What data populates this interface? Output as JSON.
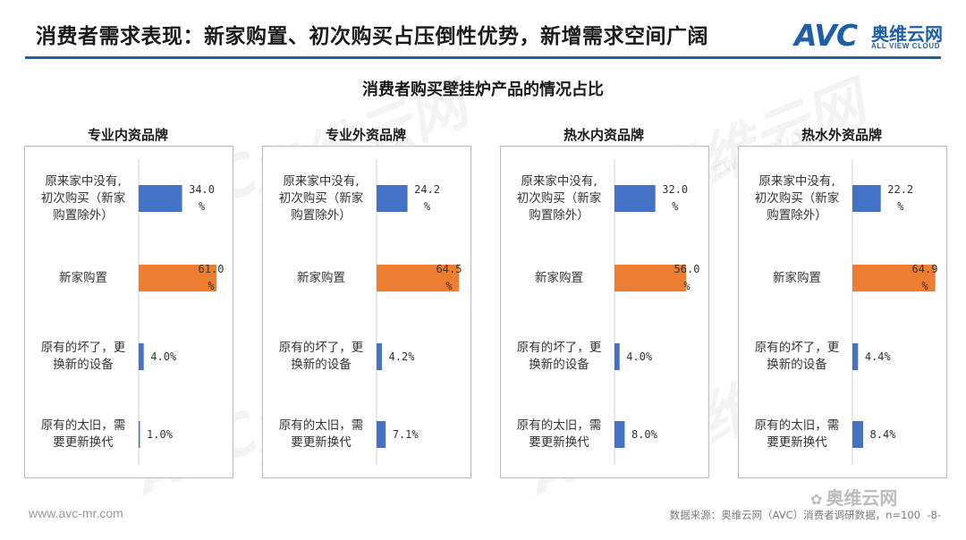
{
  "header": {
    "title": "消费者需求表现：新家购置、初次购买占压倒性优势，新增需求空间广阔"
  },
  "logo": {
    "mark": "AVC",
    "name_cn": "奥维云网",
    "name_en": "ALL VIEW CLOUD"
  },
  "watermark": {
    "mark": "AVC",
    "name_cn": "奥维云网",
    "name_en": "ALL VIEW CLOUD"
  },
  "colors": {
    "blue": "#4472c4",
    "orange": "#ed7d31",
    "rule": "#1f5fa8"
  },
  "chart_data": {
    "type": "bar",
    "orientation": "horizontal",
    "title": "消费者购买壁挂炉产品的情况占比",
    "categories": [
      [
        "原来家中没有,",
        "初次购买（新家",
        "购置除外）"
      ],
      [
        "新家购置"
      ],
      [
        "原有的坏了，更",
        "换新的设备"
      ],
      [
        "原有的太旧，需",
        "要更新换代"
      ]
    ],
    "bar_colors": [
      "#4472c4",
      "#ed7d31",
      "#4472c4",
      "#4472c4"
    ],
    "xlim": [
      0,
      70
    ],
    "value_suffix": "%",
    "panels": [
      {
        "title": "专业内资品牌",
        "values": [
          34.0,
          61.0,
          4.0,
          1.0
        ],
        "value_labels": [
          [
            "34.0",
            "%"
          ],
          [
            "61.0",
            "%"
          ],
          [
            "4.0%"
          ],
          [
            "1.0%"
          ]
        ]
      },
      {
        "title": "专业外资品牌",
        "values": [
          24.2,
          64.5,
          4.2,
          7.1
        ],
        "value_labels": [
          [
            "24.2",
            "%"
          ],
          [
            "64.5",
            "%"
          ],
          [
            "4.2%"
          ],
          [
            "7.1%"
          ]
        ]
      },
      {
        "title": "热水内资品牌",
        "values": [
          32.0,
          56.0,
          4.0,
          8.0
        ],
        "value_labels": [
          [
            "32.0",
            "%"
          ],
          [
            "56.0",
            "%"
          ],
          [
            "4.0%"
          ],
          [
            "8.0%"
          ]
        ]
      },
      {
        "title": "热水外资品牌",
        "values": [
          22.2,
          64.9,
          4.4,
          8.4
        ],
        "value_labels": [
          [
            "22.2",
            "%"
          ],
          [
            "64.9",
            "%"
          ],
          [
            "4.4%"
          ],
          [
            "8.4%"
          ]
        ]
      }
    ]
  },
  "footer": {
    "website": "www.avc-mr.com",
    "source": "数据来源：奥维云网（AVC）消费者调研数据，n=100",
    "page": "-8-",
    "wechat": "奥维云网"
  }
}
